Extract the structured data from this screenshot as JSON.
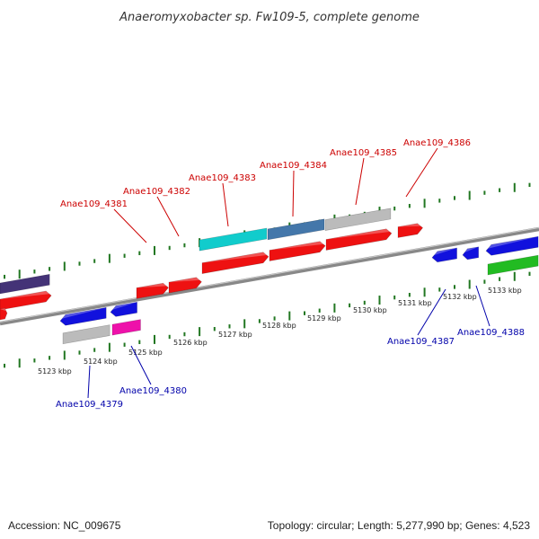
{
  "title": "Anaeromyxobacter sp. Fw109-5, complete genome",
  "footer": {
    "accession": "Accession: NC_009675",
    "summary": "Topology: circular; Length: 5,277,990 bp; Genes: 4,523"
  },
  "colors": {
    "red": "#ee1111",
    "blue": "#1111dd",
    "cyan": "#11cccc",
    "steel": "#4477aa",
    "gray": "#bbbbbb",
    "navy": "#443377",
    "magenta": "#ee11aa",
    "green": "#22bb22",
    "tick_green": "#227722",
    "label_red": "#cc0000",
    "label_blue": "#0000aa",
    "backbone": "#888888"
  },
  "scale": {
    "unit": "kbp",
    "major_ticks": [
      "5123 kbp",
      "5124 kbp",
      "5125 kbp",
      "5126 kbp",
      "5127 kbp",
      "5128 kbp",
      "5129 kbp",
      "5130 kbp",
      "5131 kbp",
      "5132 kbp",
      "5133 kbp"
    ]
  },
  "gene_labels": {
    "top": [
      "Anae109_4381",
      "Anae109_4382",
      "Anae109_4383",
      "Anae109_4384",
      "Anae109_4385",
      "Anae109_4386"
    ],
    "bottom": [
      "Anae109_4379",
      "Anae109_4380",
      "Anae109_4387",
      "Anae109_4388"
    ]
  }
}
